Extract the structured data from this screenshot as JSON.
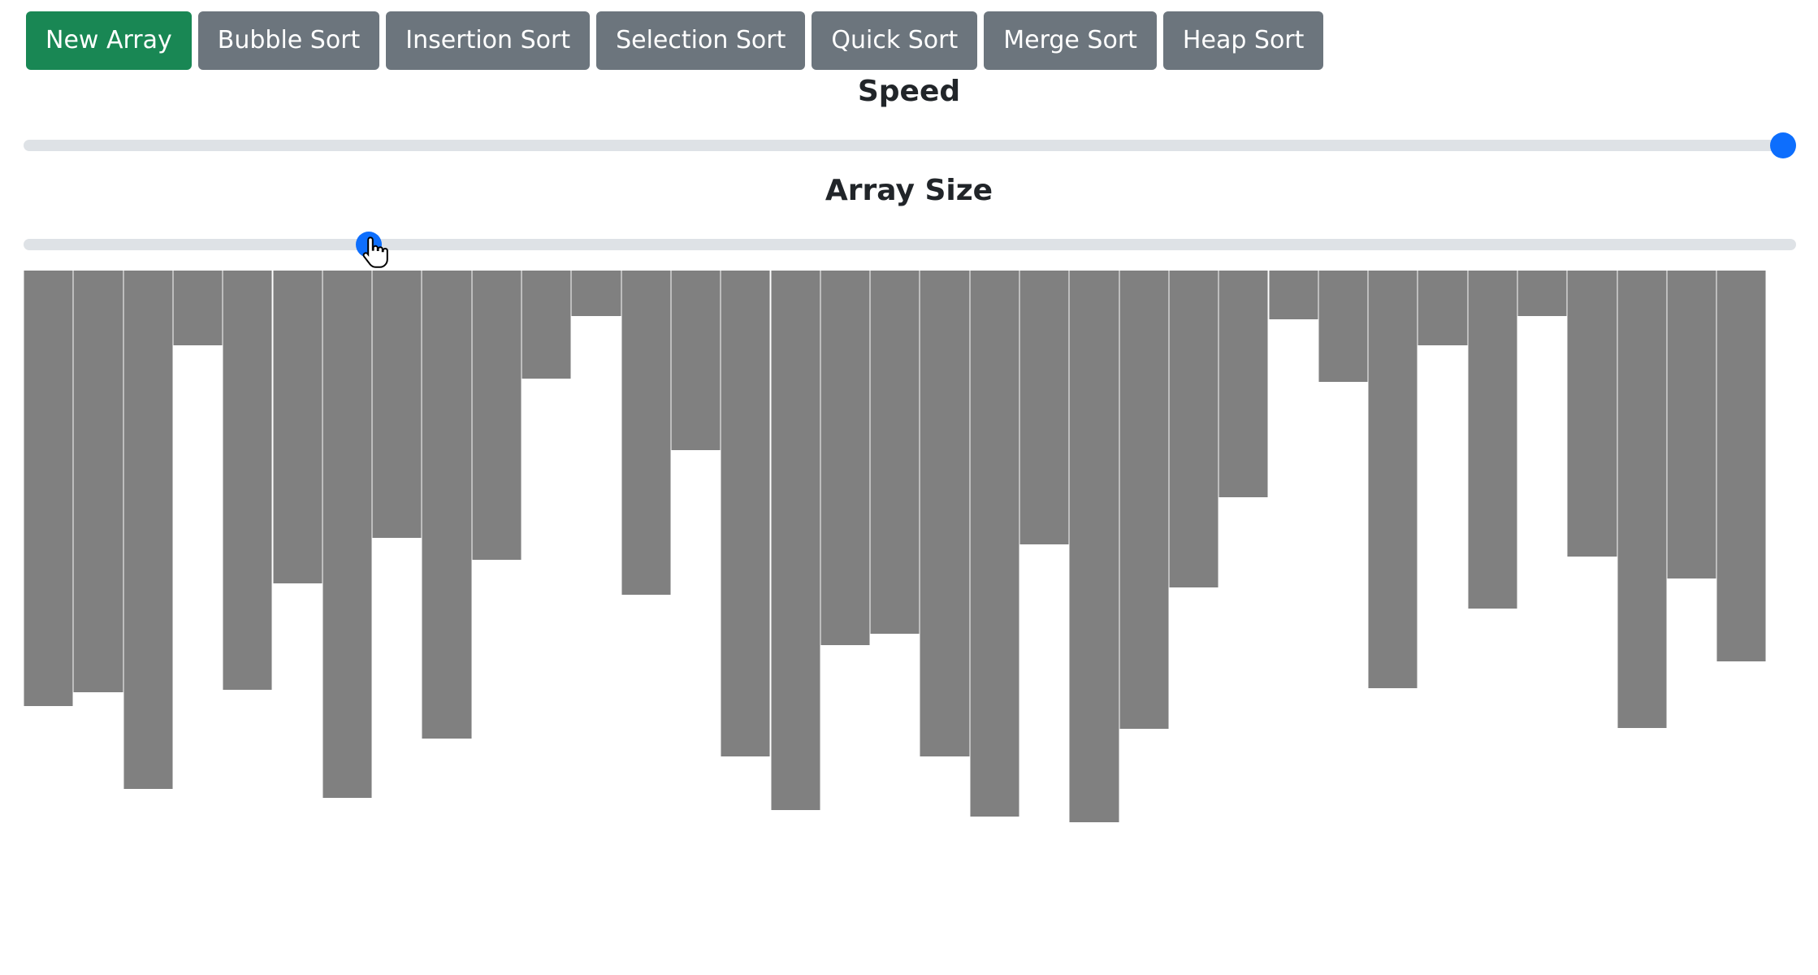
{
  "toolbar": {
    "buttons": [
      {
        "label": "New Array",
        "style": "primary"
      },
      {
        "label": "Bubble Sort",
        "style": "secondary"
      },
      {
        "label": "Insertion Sort",
        "style": "secondary"
      },
      {
        "label": "Selection Sort",
        "style": "secondary"
      },
      {
        "label": "Quick Sort",
        "style": "secondary"
      },
      {
        "label": "Merge Sort",
        "style": "secondary"
      },
      {
        "label": "Heap Sort",
        "style": "secondary"
      }
    ]
  },
  "speed": {
    "label": "Speed",
    "value_fraction": 1.0
  },
  "array_size": {
    "label": "Array Size",
    "value_fraction": 0.19
  },
  "colors": {
    "primary": "#198754",
    "secondary": "#6c757d",
    "accent": "#0d6efd",
    "bar": "#808080",
    "track": "#dee2e6"
  },
  "icons": {
    "cursor": "hand-pointer-cursor-icon"
  },
  "array": {
    "values": [
      536,
      519,
      638,
      92,
      516,
      385,
      649,
      329,
      576,
      356,
      133,
      56,
      399,
      221,
      598,
      664,
      461,
      447,
      598,
      672,
      337,
      679,
      564,
      390,
      279,
      60,
      137,
      514,
      92,
      416,
      56,
      352,
      563,
      379,
      481
    ],
    "max_value": 700
  }
}
